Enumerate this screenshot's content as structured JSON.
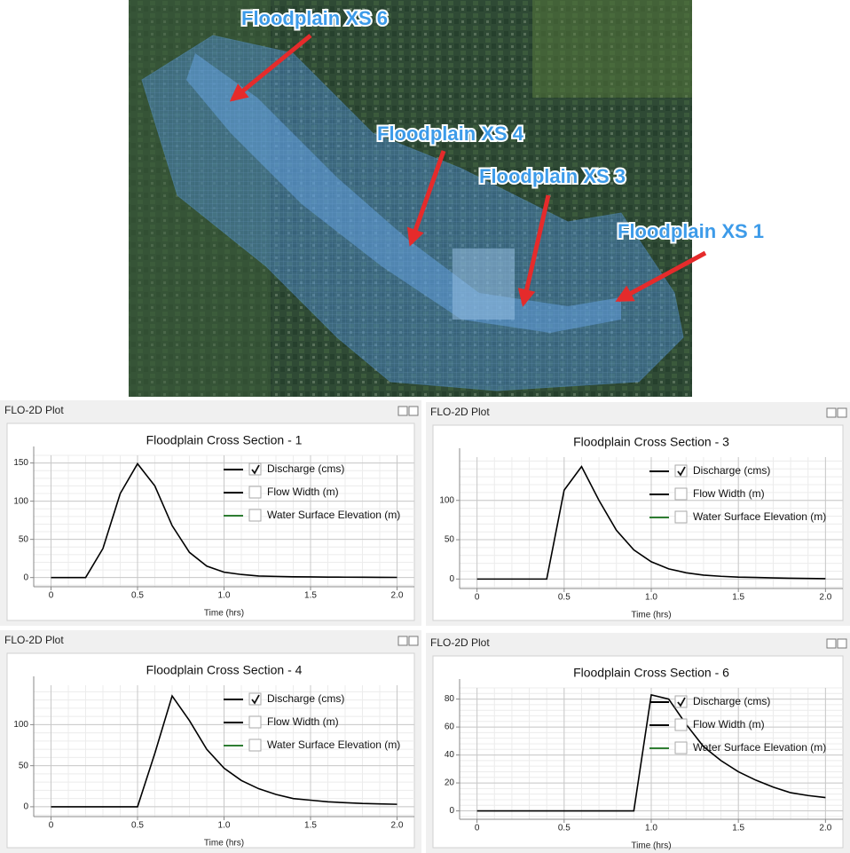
{
  "map": {
    "labels": [
      "Floodplain XS 6",
      "Floodplain XS 4",
      "Floodplain XS 3",
      "Floodplain XS 1"
    ]
  },
  "chart_data": [
    {
      "type": "line",
      "window_title": "FLO-2D Plot",
      "title": "Floodplain Cross Section - 1",
      "xlabel": "Time (hrs)",
      "x": [
        0,
        0.1,
        0.2,
        0.3,
        0.4,
        0.5,
        0.6,
        0.7,
        0.8,
        0.9,
        1.0,
        1.1,
        1.2,
        1.3,
        1.4,
        1.5,
        1.6,
        1.7,
        1.8,
        1.9,
        2.0
      ],
      "series": [
        {
          "name": "Discharge (cms)",
          "color": "#000000",
          "checked": true,
          "values": [
            0,
            0,
            0,
            38,
            110,
            149,
            120,
            68,
            33,
            15,
            7,
            4,
            2,
            1.5,
            1,
            0.8,
            0.6,
            0.5,
            0.4,
            0.3,
            0.2
          ]
        },
        {
          "name": "Flow Width (m)",
          "color": "#000000",
          "checked": false
        },
        {
          "name": "Water Surface Elevation (m)",
          "color": "#2e7d32",
          "checked": false
        }
      ],
      "xlim": [
        -0.1,
        2.1
      ],
      "ylim": [
        -12,
        160
      ],
      "xticks": [
        0,
        0.5,
        {
          "value": 1,
          "label": "1.0"
        },
        1.5,
        {
          "value": 2,
          "label": "2.0"
        }
      ],
      "yticks": [
        0,
        50,
        100,
        150
      ],
      "grid": true
    },
    {
      "type": "line",
      "window_title": "FLO-2D Plot",
      "title": "Floodplain Cross Section - 3",
      "xlabel": "Time (hrs)",
      "x": [
        0,
        0.1,
        0.2,
        0.3,
        0.4,
        0.5,
        0.6,
        0.7,
        0.8,
        0.9,
        1.0,
        1.1,
        1.2,
        1.3,
        1.4,
        1.5,
        1.6,
        1.7,
        1.8,
        1.9,
        2.0
      ],
      "series": [
        {
          "name": "Discharge (cms)",
          "color": "#000000",
          "checked": true,
          "values": [
            0,
            0,
            0,
            0,
            0,
            113,
            143,
            100,
            62,
            37,
            22,
            13,
            8,
            5,
            3.5,
            2.5,
            2,
            1.5,
            1,
            0.8,
            0.5
          ]
        },
        {
          "name": "Flow Width (m)",
          "color": "#000000",
          "checked": false
        },
        {
          "name": "Water Surface Elevation (m)",
          "color": "#2e7d32",
          "checked": false
        }
      ],
      "xlim": [
        -0.1,
        2.1
      ],
      "ylim": [
        -12,
        155
      ],
      "xticks": [
        0,
        0.5,
        {
          "value": 1,
          "label": "1.0"
        },
        1.5,
        {
          "value": 2,
          "label": "2.0"
        }
      ],
      "yticks": [
        0,
        50,
        100
      ],
      "grid": true
    },
    {
      "type": "line",
      "window_title": "FLO-2D Plot",
      "title": "Floodplain Cross Section - 4",
      "xlabel": "Time (hrs)",
      "x": [
        0,
        0.1,
        0.2,
        0.3,
        0.4,
        0.5,
        0.6,
        0.7,
        0.8,
        0.9,
        1.0,
        1.1,
        1.2,
        1.3,
        1.4,
        1.5,
        1.6,
        1.7,
        1.8,
        1.9,
        2.0
      ],
      "series": [
        {
          "name": "Discharge (cms)",
          "color": "#000000",
          "checked": true,
          "values": [
            0,
            0,
            0,
            0,
            0,
            0,
            65,
            135,
            105,
            70,
            47,
            32,
            22,
            15,
            10,
            8,
            6,
            5,
            4,
            3.5,
            3
          ]
        },
        {
          "name": "Flow Width (m)",
          "color": "#000000",
          "checked": false
        },
        {
          "name": "Water Surface Elevation (m)",
          "color": "#2e7d32",
          "checked": false
        }
      ],
      "xlim": [
        -0.1,
        2.1
      ],
      "ylim": [
        -12,
        148
      ],
      "xticks": [
        0,
        0.5,
        {
          "value": 1,
          "label": "1.0"
        },
        1.5,
        {
          "value": 2,
          "label": "2.0"
        }
      ],
      "yticks": [
        0,
        50,
        100
      ],
      "grid": true
    },
    {
      "type": "line",
      "window_title": "FLO-2D Plot",
      "title": "Floodplain Cross Section - 6",
      "xlabel": "Time (hrs)",
      "x": [
        0,
        0.1,
        0.2,
        0.3,
        0.4,
        0.5,
        0.6,
        0.7,
        0.8,
        0.9,
        1.0,
        1.1,
        1.2,
        1.3,
        1.4,
        1.5,
        1.6,
        1.7,
        1.8,
        1.9,
        2.0
      ],
      "series": [
        {
          "name": "Discharge (cms)",
          "color": "#000000",
          "checked": true,
          "values": [
            0,
            0,
            0,
            0,
            0,
            0,
            0,
            0,
            0,
            0,
            83,
            80,
            62,
            46,
            36,
            28,
            22,
            17,
            13,
            11,
            9.5
          ]
        },
        {
          "name": "Flow Width (m)",
          "color": "#000000",
          "checked": false
        },
        {
          "name": "Water Surface Elevation (m)",
          "color": "#2e7d32",
          "checked": false
        }
      ],
      "xlim": [
        -0.1,
        2.1
      ],
      "ylim": [
        -6,
        88
      ],
      "xticks": [
        0,
        0.5,
        {
          "value": 1,
          "label": "1.0"
        },
        1.5,
        {
          "value": 2,
          "label": "2.0"
        }
      ],
      "yticks": [
        0,
        20,
        40,
        60,
        80
      ],
      "grid": true
    }
  ]
}
